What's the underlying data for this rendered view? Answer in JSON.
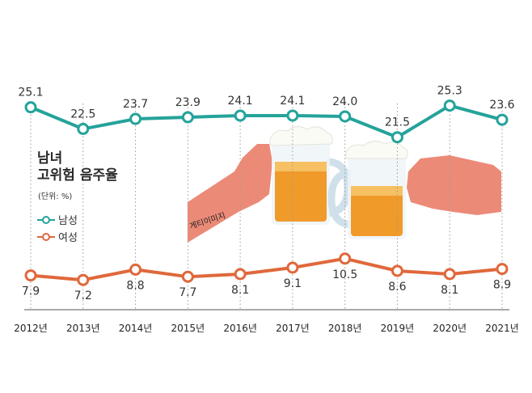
{
  "title_line1": "남녀",
  "title_line2": "고위험 음주율",
  "unit": "(단위: %)",
  "credit": "게티이미지",
  "colors": {
    "male": "#24a39a",
    "female": "#e0683c",
    "grid": "#9a9a9a",
    "axis": "#555555"
  },
  "chart_data": {
    "type": "line",
    "categories": [
      "2012년",
      "2013년",
      "2014년",
      "2015년",
      "2016년",
      "2017년",
      "2018년",
      "2019년",
      "2020년",
      "2021년"
    ],
    "series": [
      {
        "name": "남성",
        "values": [
          25.1,
          22.5,
          23.7,
          23.9,
          24.1,
          24.1,
          24.0,
          21.5,
          25.3,
          23.6
        ],
        "labels": [
          "25.1",
          "22.5",
          "23.7",
          "23.9",
          "24.1",
          "24.1",
          "24.0",
          "21.5",
          "25.3",
          "23.6"
        ]
      },
      {
        "name": "여성",
        "values": [
          7.9,
          7.2,
          8.8,
          7.7,
          8.1,
          9.1,
          10.5,
          8.6,
          8.1,
          8.9
        ],
        "labels": [
          "7.9",
          "7.2",
          "8.8",
          "7.7",
          "8.1",
          "9.1",
          "10.5",
          "8.6",
          "8.1",
          "8.9"
        ]
      }
    ],
    "legend": "left",
    "grid": true
  }
}
